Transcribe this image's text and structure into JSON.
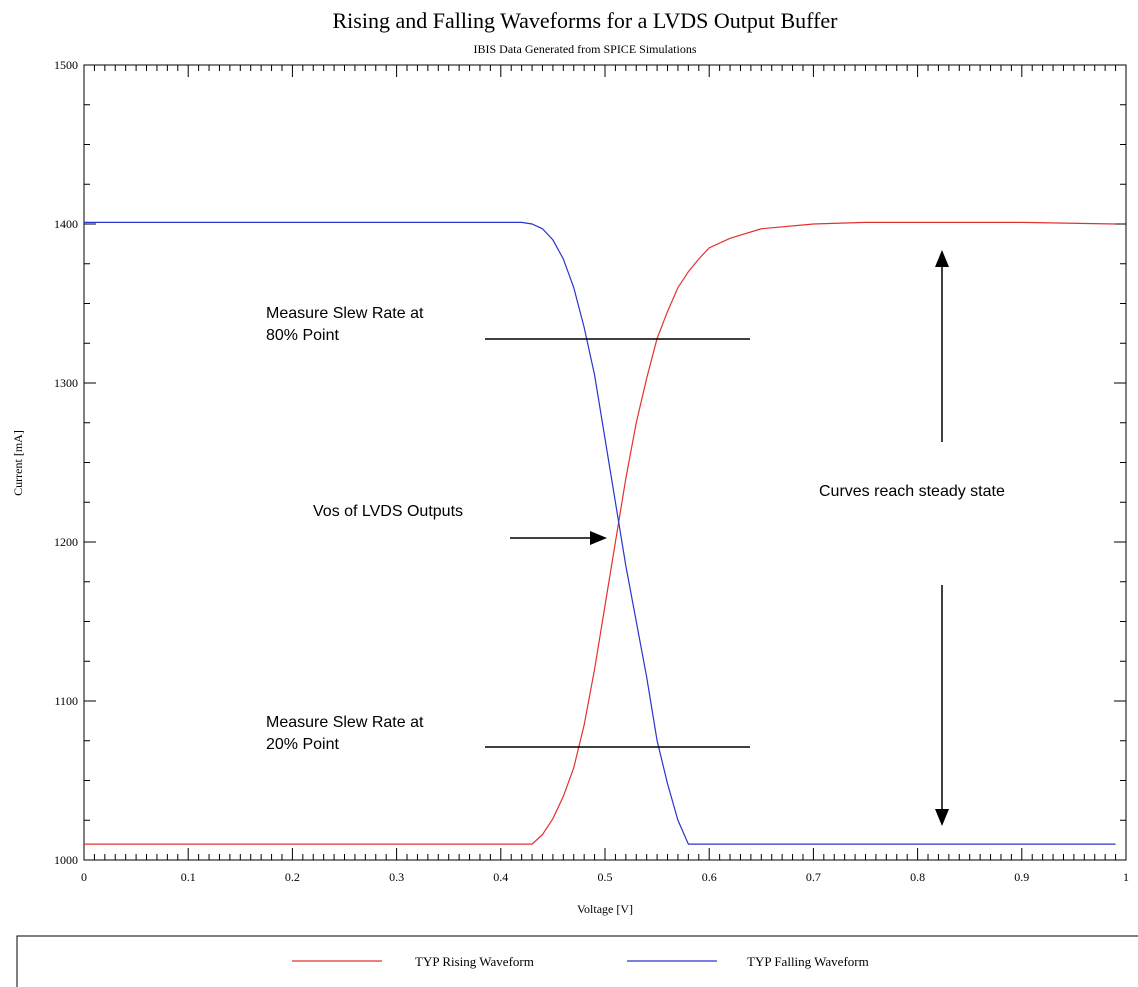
{
  "chart_data": {
    "type": "line",
    "title": "Rising and Falling Waveforms  for a LVDS Output Buffer",
    "subtitle": "IBIS Data Generated from SPICE Simulations",
    "xlabel": "Voltage [V]",
    "ylabel": "Current [mA]",
    "xlim": [
      0,
      1
    ],
    "ylim": [
      1000,
      1500
    ],
    "x_ticks": [
      "0",
      "0.1",
      "0.2",
      "0.3",
      "0.4",
      "0.5",
      "0.6",
      "0.7",
      "0.8",
      "0.9",
      "1"
    ],
    "y_ticks": [
      "1000",
      "1100",
      "1200",
      "1300",
      "1400",
      "1500"
    ],
    "legend_position": "bottom",
    "series": [
      {
        "name": "TYP Rising Waveform",
        "color": "#e53030",
        "x": [
          0,
          0.43,
          0.44,
          0.45,
          0.46,
          0.47,
          0.48,
          0.49,
          0.5,
          0.51,
          0.52,
          0.53,
          0.54,
          0.55,
          0.56,
          0.57,
          0.58,
          0.59,
          0.6,
          0.62,
          0.65,
          0.7,
          0.75,
          0.8,
          0.9,
          0.99
        ],
        "y": [
          1010,
          1010,
          1016,
          1026,
          1040,
          1058,
          1085,
          1120,
          1160,
          1200,
          1240,
          1275,
          1303,
          1328,
          1345,
          1360,
          1370,
          1378,
          1385,
          1391,
          1397,
          1400,
          1401,
          1401,
          1401,
          1400
        ]
      },
      {
        "name": "TYP Falling Waveform",
        "color": "#2a35cc",
        "x": [
          0,
          0.42,
          0.43,
          0.44,
          0.45,
          0.46,
          0.47,
          0.48,
          0.49,
          0.5,
          0.51,
          0.52,
          0.53,
          0.54,
          0.55,
          0.56,
          0.57,
          0.58,
          0.99
        ],
        "y": [
          1401,
          1401,
          1400,
          1397,
          1390,
          1378,
          1360,
          1335,
          1305,
          1265,
          1225,
          1185,
          1150,
          1115,
          1075,
          1048,
          1025,
          1010,
          1010
        ]
      }
    ],
    "annotations": [
      {
        "text": "Measure Slew Rate at\n80% Point",
        "lines": [
          "Measure Slew Rate at",
          "80% Point"
        ]
      },
      {
        "text": "Vos of LVDS Outputs",
        "lines": [
          "Vos of LVDS Outputs"
        ]
      },
      {
        "text": "Measure Slew Rate at\n20% Point",
        "lines": [
          "Measure Slew Rate at",
          "20% Point"
        ]
      },
      {
        "text": "Curves reach steady state",
        "lines": [
          "Curves reach steady state"
        ]
      }
    ]
  }
}
